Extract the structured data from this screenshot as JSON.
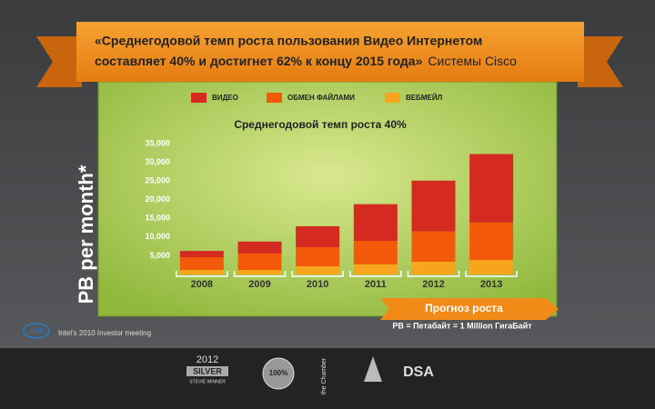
{
  "chart_data": {
    "type": "bar",
    "stacked": true,
    "banner_line1": "«Среднегодовой темп роста пользования Видео Интернетом",
    "banner_line2": "составляет 40% и достигнет 62% к концу 2015 года»",
    "banner_source": "Системы Cisco",
    "title": "Среднегодовой темп роста 40%",
    "ylabel": "PB per month*",
    "categories": [
      "2008",
      "2009",
      "2010",
      "2011",
      "2012",
      "2013"
    ],
    "series": [
      {
        "name": "ВЕБМЕЙЛ",
        "color": "#f7a51c",
        "values": [
          1200,
          1200,
          2200,
          2700,
          3400,
          3900
        ]
      },
      {
        "name": "ОБМЕН ФАЙЛАМИ",
        "color": "#f25a0a",
        "values": [
          3400,
          4400,
          5100,
          6300,
          8100,
          10000
        ]
      },
      {
        "name": "ВИДЕО",
        "color": "#d42a20",
        "values": [
          1700,
          3200,
          5600,
          9800,
          13600,
          18300
        ]
      }
    ],
    "legend_order": [
      2,
      1,
      0
    ],
    "ylim": [
      0,
      35000
    ],
    "yticks": [
      {
        "value": 5000,
        "label": "5,000"
      },
      {
        "value": 10000,
        "label": "10,000"
      },
      {
        "value": 15000,
        "label": "15,000"
      },
      {
        "value": 20000,
        "label": "20,000"
      },
      {
        "value": 25000,
        "label": "25,000"
      },
      {
        "value": 30000,
        "label": "30,000"
      },
      {
        "value": 35000,
        "label": "35,000"
      }
    ],
    "forecast": "Прогноз роста",
    "footnote": "PB = Петабайт = 1 Million ГигаБайт"
  },
  "footer": {
    "logo": "intel",
    "source": "Intel's 2010 Investor meeting",
    "award_year": "2012",
    "award_level": "SILVER",
    "award_text": "STEVIE WINNER",
    "seal": "100%",
    "chamber": "the Chamber",
    "dsa": "DSA"
  }
}
